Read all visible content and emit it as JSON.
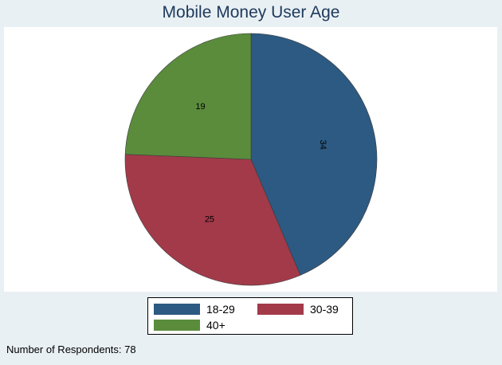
{
  "chart_data": {
    "type": "pie",
    "title": "Mobile Money User Age",
    "categories": [
      "18-29",
      "30-39",
      "40+"
    ],
    "values": [
      34,
      25,
      19
    ],
    "colors": [
      "#2c5a82",
      "#a33a4a",
      "#5a8c3c"
    ],
    "start_angle_deg": 0,
    "direction": "clockwise",
    "legend_position": "bottom",
    "note": "Number of Respondents: 78"
  }
}
